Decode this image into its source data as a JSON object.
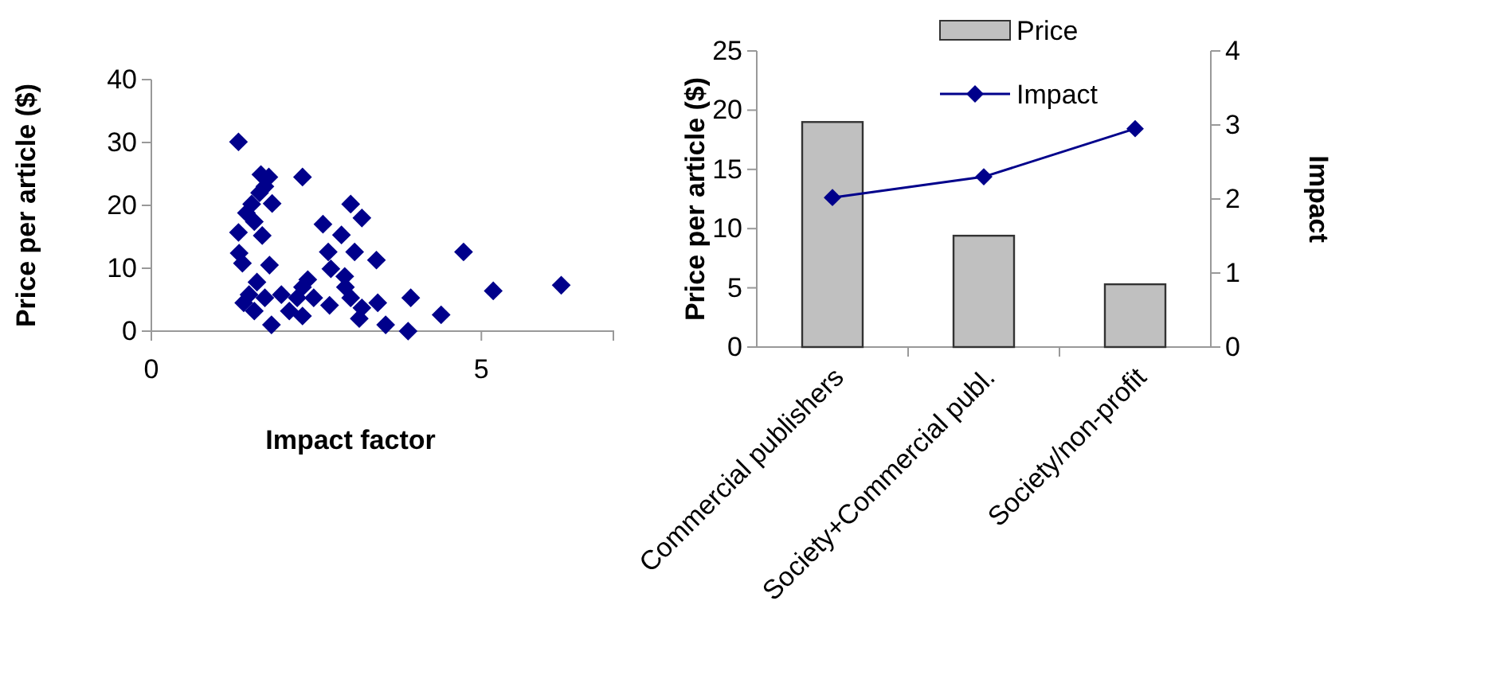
{
  "chart_data": [
    {
      "type": "scatter",
      "xlabel": "Impact factor",
      "ylabel": "Price per article ($)",
      "xlim": [
        0,
        7
      ],
      "xticks": [
        0,
        5
      ],
      "ylim": [
        0,
        40
      ],
      "yticks": [
        0,
        10,
        20,
        30,
        40
      ],
      "marker": "diamond",
      "series": [
        {
          "color": "#00008b",
          "x": [
            1.32,
            1.66,
            1.78,
            1.72,
            1.64,
            1.83,
            1.52,
            1.44,
            1.56,
            1.32,
            1.68,
            2.29,
            3.02,
            3.19,
            2.6,
            2.88,
            2.68,
            3.08,
            3.41,
            1.33,
            1.38,
            1.79,
            2.72,
            2.93,
            4.73,
            5.18,
            6.21,
            3.93,
            4.39,
            3.89,
            3.55,
            3.43,
            3.15,
            3.19,
            3.02,
            2.94,
            2.7,
            2.37,
            2.29,
            2.21,
            2.46,
            2.29,
            2.09,
            1.97,
            1.72,
            1.6,
            1.48,
            1.4,
            1.56,
            1.82
          ],
          "values": [
            30.1,
            24.9,
            24.5,
            23,
            22,
            20.3,
            20.2,
            18.8,
            17.4,
            15.7,
            15.2,
            24.5,
            20.2,
            18,
            17,
            15.3,
            12.6,
            12.6,
            11.3,
            12.4,
            10.8,
            10.5,
            9.9,
            8.7,
            12.6,
            6.4,
            7.3,
            5.3,
            2.6,
            0,
            1,
            4.5,
            2,
            3.7,
            5.3,
            7,
            4.1,
            8.2,
            7,
            5.3,
            5.3,
            2.4,
            3.2,
            5.8,
            5.3,
            7.8,
            5.8,
            4.5,
            3.2,
            1
          ]
        }
      ]
    },
    {
      "type": "bar",
      "categories": [
        "Commercial publishers",
        "Society+Commercial publ.",
        "Society/non-profit"
      ],
      "ylabel": "Price per article ($)",
      "y2label": "Impact",
      "ylim": [
        0,
        25
      ],
      "yticks": [
        0,
        5,
        10,
        15,
        20,
        25
      ],
      "y2lim": [
        0,
        4
      ],
      "y2ticks": [
        0,
        1,
        2,
        3,
        4
      ],
      "legend": "top",
      "grid": false,
      "series": [
        {
          "name": "Price",
          "color": "#c0c0c0",
          "values": [
            19,
            9.4,
            5.3
          ]
        },
        {
          "name": "Impact",
          "type": "line",
          "axis": "y2",
          "color": "#00008b",
          "marker": "diamond",
          "values": [
            2.02,
            2.3,
            2.95
          ]
        }
      ]
    }
  ]
}
